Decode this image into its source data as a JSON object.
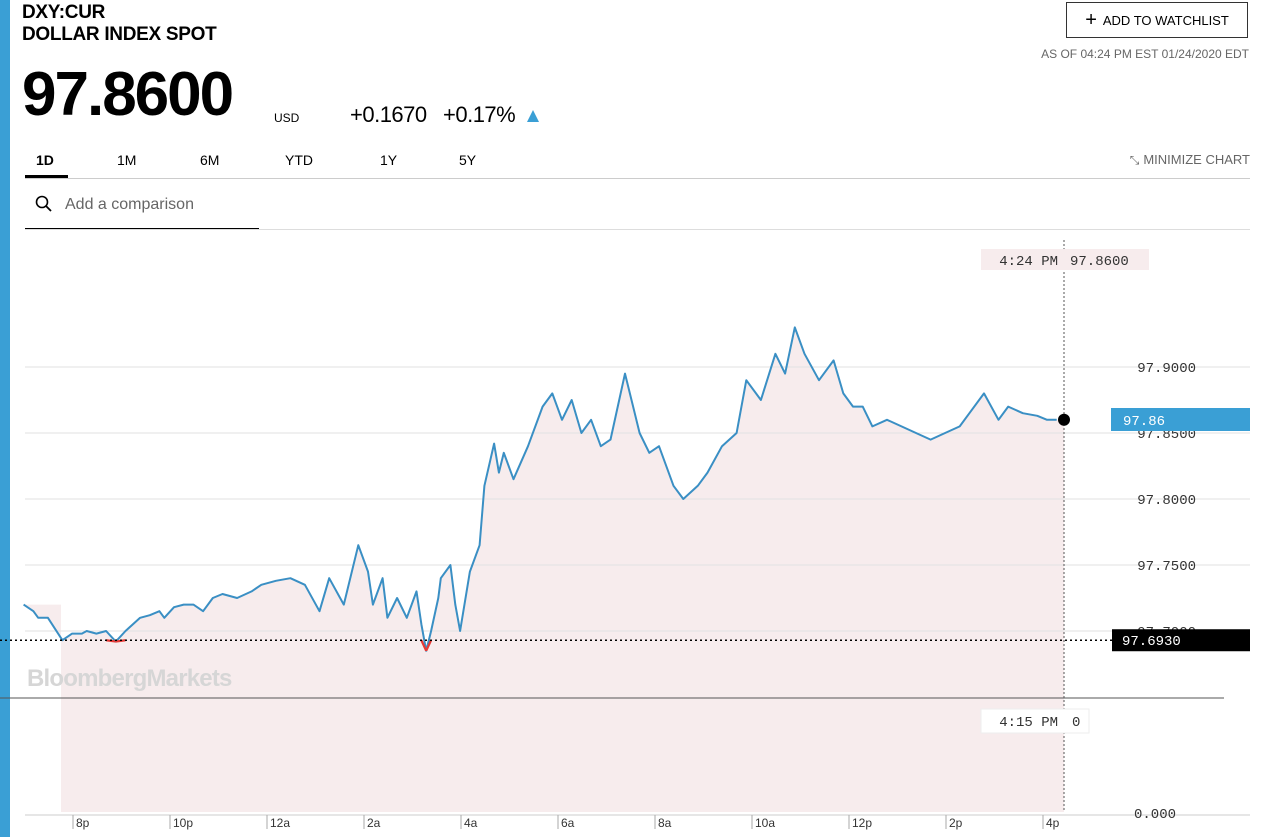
{
  "header": {
    "ticker": "DXY:CUR",
    "name": "DOLLAR INDEX SPOT",
    "price": "97.8600",
    "currency": "USD",
    "change": "+0.1670",
    "change_pct": "+0.17%",
    "watchlist_label": "ADD TO WATCHLIST",
    "as_of": "AS OF 04:24 PM EST 01/24/2020 EDT"
  },
  "tabs": [
    {
      "label": "1D",
      "active": true
    },
    {
      "label": "1M"
    },
    {
      "label": "6M"
    },
    {
      "label": "YTD"
    },
    {
      "label": "1Y"
    },
    {
      "label": "5Y"
    }
  ],
  "minimize_label": "MINIMIZE CHART",
  "search": {
    "placeholder": "Add a comparison"
  },
  "watermark": "BloombergMarkets",
  "colors": {
    "accent": "#3a9fd5",
    "line": "#3a8fc4",
    "down": "#e53935",
    "fill": "#f7eced",
    "label_bg": "#f7eced"
  },
  "chart_data": {
    "type": "line",
    "x_tick_labels": [
      "8p",
      "10p",
      "12a",
      "2a",
      "4a",
      "6a",
      "8a",
      "10a",
      "12p",
      "2p",
      "4p"
    ],
    "x_tick_hours": [
      20,
      22,
      24,
      26,
      28,
      30,
      32,
      34,
      36,
      38,
      40
    ],
    "y_tick_labels": [
      "97.9000",
      "97.8500",
      "97.8000",
      "97.7500",
      "97.7000",
      "0.000"
    ],
    "y_tick_values": [
      97.9,
      97.85,
      97.8,
      97.75,
      97.7
    ],
    "previous_close": 97.693,
    "previous_close_label": "97.6930",
    "last_value_label": "97.86",
    "cursor_label_time": "4:24 PM",
    "cursor_label_value": "97.8600",
    "volume_label_time": "4:15 PM",
    "volume_label_value": "0",
    "series": [
      {
        "x": [
          18.9,
          19.1,
          19.2,
          19.4,
          19.7,
          19.9,
          20.1,
          20.2,
          20.4,
          20.6,
          20.8,
          21.0,
          21.3,
          21.5,
          21.7,
          21.8,
          22.0,
          22.2,
          22.4,
          22.6,
          22.8,
          23.0,
          23.3,
          23.6,
          23.8,
          24.1,
          24.4,
          24.7,
          25.0,
          25.2,
          25.5,
          25.8,
          26.0,
          26.1,
          26.3,
          26.4,
          26.6,
          26.8,
          27.0,
          27.1,
          27.2,
          27.3,
          27.45,
          27.5,
          27.7,
          27.8,
          27.9,
          28.1,
          28.3,
          28.4,
          28.6,
          28.7,
          28.8,
          29.0,
          29.3,
          29.6,
          29.8,
          30.0,
          30.2,
          30.4,
          30.6,
          30.8,
          31.0,
          31.3,
          31.6,
          31.8,
          32.0,
          32.3,
          32.5,
          32.8,
          33.0,
          33.3,
          33.6,
          33.8,
          34.1,
          34.4,
          34.6,
          34.8,
          35.0,
          35.3,
          35.6,
          35.8,
          36.0,
          36.2,
          36.4,
          36.7,
          37.0,
          37.3,
          37.6,
          37.9,
          38.2,
          38.4,
          38.7,
          39.0,
          39.2,
          39.5,
          39.8,
          40.0,
          40.2
        ],
        "y": [
          97.72,
          97.715,
          97.71,
          97.71,
          97.693,
          97.698,
          97.698,
          97.7,
          97.698,
          97.7,
          97.692,
          97.7,
          97.71,
          97.712,
          97.715,
          97.71,
          97.718,
          97.72,
          97.72,
          97.715,
          97.725,
          97.728,
          97.725,
          97.73,
          97.735,
          97.738,
          97.74,
          97.735,
          97.715,
          97.74,
          97.72,
          97.765,
          97.745,
          97.72,
          97.74,
          97.71,
          97.725,
          97.71,
          97.73,
          97.705,
          97.685,
          97.7,
          97.725,
          97.74,
          97.75,
          97.72,
          97.7,
          97.745,
          97.765,
          97.81,
          97.842,
          97.82,
          97.835,
          97.815,
          97.84,
          97.87,
          97.88,
          97.86,
          97.875,
          97.85,
          97.86,
          97.84,
          97.845,
          97.895,
          97.85,
          97.835,
          97.84,
          97.81,
          97.8,
          97.81,
          97.82,
          97.84,
          97.85,
          97.89,
          97.875,
          97.91,
          97.895,
          97.93,
          97.91,
          97.89,
          97.905,
          97.88,
          97.87,
          97.87,
          97.855,
          97.86,
          97.855,
          97.85,
          97.845,
          97.85,
          97.855,
          97.865,
          97.88,
          97.86,
          97.87,
          97.865,
          97.863,
          97.86,
          97.86
        ]
      }
    ]
  }
}
